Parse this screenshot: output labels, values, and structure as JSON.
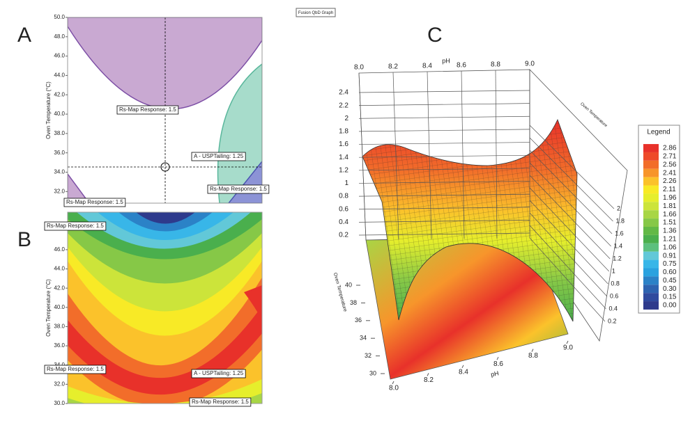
{
  "chart_data": [
    {
      "type": "region",
      "panel": "A",
      "ylabel": "Oven Temperature (°C)",
      "ylim": [
        30.8,
        50
      ],
      "yticks": [
        {
          "value": 32,
          "label": "32.0"
        },
        {
          "value": 34,
          "label": "34.0"
        },
        {
          "value": 36,
          "label": "36.0"
        },
        {
          "value": 38,
          "label": "38.0"
        },
        {
          "value": 40,
          "label": "40.0"
        },
        {
          "value": 42,
          "label": "42.0"
        },
        {
          "value": 44,
          "label": "44.0"
        },
        {
          "value": 46,
          "label": "46.0"
        },
        {
          "value": 48,
          "label": "48.0"
        },
        {
          "value": 50,
          "label": "50.0"
        }
      ],
      "annotations": [
        "Rs-Map Response: 1.5",
        "A - USPTailing: 1.25",
        "Rs-Map Response: 1.5",
        "Rs-Map Response: 1.5"
      ]
    },
    {
      "type": "contour",
      "panel": "B",
      "ylabel": "Oven Temperature (°C)",
      "ylim": [
        30,
        49.9
      ],
      "yticks": [
        {
          "value": 30,
          "label": "30.0"
        },
        {
          "value": 32,
          "label": "32.0"
        },
        {
          "value": 34,
          "label": "34.0"
        },
        {
          "value": 36,
          "label": "36.0"
        },
        {
          "value": 38,
          "label": "38.0"
        },
        {
          "value": 40,
          "label": "40.0"
        },
        {
          "value": 42,
          "label": "42.0"
        },
        {
          "value": 44,
          "label": "44.0"
        },
        {
          "value": 46,
          "label": "46.0"
        }
      ],
      "annotations": [
        "Rs-Map Response: 1.5",
        "Rs-Map Response: 1.5",
        "A - USPTailing: 1.25",
        "Rs-Map Response: 1.5"
      ]
    },
    {
      "type": "surface",
      "panel": "C",
      "title": "Fusion QbD Graph",
      "xlabel": "pH",
      "ylabel": "Oven Temperature",
      "xlim": [
        8,
        9
      ],
      "xticks": [
        {
          "value": 8,
          "label": "8.0"
        },
        8.2,
        8.4,
        8.6,
        8.8,
        {
          "value": 9,
          "label": "9.0"
        }
      ],
      "zlim": [
        0.2,
        2.4
      ],
      "zticks": [
        0.2,
        0.4,
        0.6,
        0.8,
        1,
        1.2,
        1.4,
        1.6,
        1.8,
        2,
        2.2,
        2.4
      ],
      "ylim": [
        30,
        40
      ],
      "yticks": [
        30,
        32,
        34,
        36,
        38,
        40
      ],
      "z2lim": [
        0.2,
        2
      ],
      "z2ticks": [
        0.2,
        0.4,
        0.6,
        0.8,
        1,
        1.2,
        1.4,
        1.6,
        1.8,
        2
      ],
      "legend": {
        "title": "Legend",
        "levels": [
          2.86,
          2.71,
          2.56,
          2.41,
          2.26,
          2.11,
          1.96,
          1.81,
          1.66,
          1.51,
          1.36,
          1.21,
          1.06,
          0.91,
          0.75,
          {
            "value": 0.6,
            "label": "0.60"
          },
          0.45,
          {
            "value": 0.3,
            "label": "0.30"
          },
          0.15,
          {
            "value": 0,
            "label": "0.00"
          }
        ],
        "colors": [
          "#e8312a",
          "#ee4a2a",
          "#f26d2a",
          "#f7952b",
          "#fbc22b",
          "#f8ea26",
          "#e6ee2c",
          "#cce43a",
          "#a8d645",
          "#86c847",
          "#62b946",
          "#4aaf4d",
          "#5cc07e",
          "#62c8d8",
          "#38b6e8",
          "#2aa2df",
          "#2b82c7",
          "#2d63b0",
          "#2f4a9e",
          "#2e3a8c"
        ]
      }
    }
  ]
}
